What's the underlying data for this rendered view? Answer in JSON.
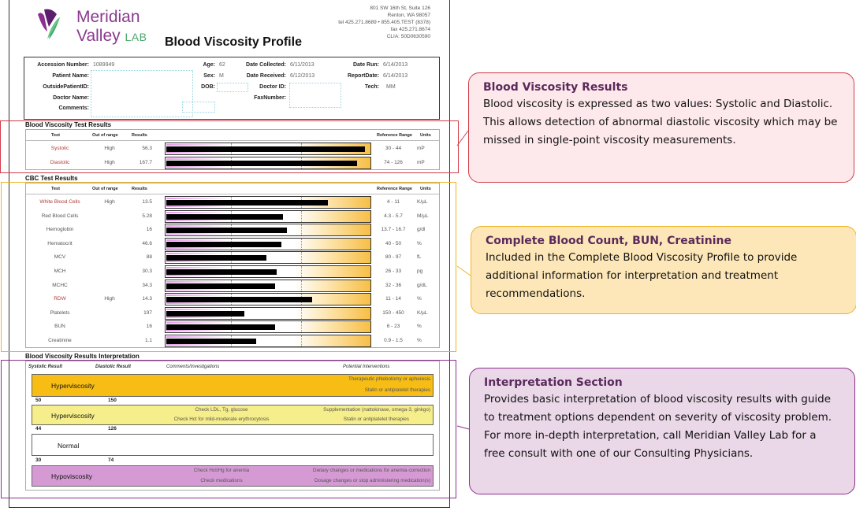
{
  "header": {
    "brand_line1": "Meridian",
    "brand_line2": "Valley",
    "brand_lab": "LAB",
    "title": "Blood Viscosity Profile",
    "address": [
      "801 SW 16th St, Suite 126",
      "Renton, WA 98057",
      "tel 425.271.8689  •  855.405.TEST (8378)",
      "fax 425.271.8674",
      "CLIA: 50D0630590"
    ],
    "logo_icon": "meridian-leaf-logo"
  },
  "patient": {
    "accession_label": "Accession Number:",
    "accession": "1089949",
    "patient_name_label": "Patient Name:",
    "patient_name": "",
    "outside_id_label": "OutsidePatientID:",
    "outside_id": "",
    "doctor_name_label": "Doctor Name:",
    "doctor_name": "",
    "comments_label": "Comments:",
    "comments": "",
    "age_label": "Age:",
    "age": "62",
    "sex_label": "Sex:",
    "sex": "M",
    "dob_label": "DOB:",
    "dob": "",
    "date_collected_label": "Date Collected:",
    "date_collected": "6/11/2013",
    "date_received_label": "Date Received:",
    "date_received": "6/12/2013",
    "doctor_id_label": "Doctor ID:",
    "doctor_id": "",
    "fax_label": "FaxNumber:",
    "fax": "",
    "date_run_label": "Date Run:",
    "date_run": "6/14/2013",
    "report_date_label": "ReportDate:",
    "report_date": "6/14/2013",
    "tech_label": "Tech:",
    "tech": "MM"
  },
  "columns": {
    "test": "Test",
    "out_of_range": "Out of range",
    "results": "Results",
    "reference_range": "Reference Range",
    "units": "Units"
  },
  "viscosity": {
    "title": "Blood Viscosity Test Results",
    "rows": [
      {
        "test": "Systolic",
        "flag": "High",
        "result": "56.3",
        "ref": "30 - 44",
        "unit": "mP",
        "bar_pct": 97,
        "high": true
      },
      {
        "test": "Diastolic",
        "flag": "High",
        "result": "167.7",
        "ref": "74 - 126",
        "unit": "mP",
        "bar_pct": 93,
        "high": true
      }
    ]
  },
  "cbc": {
    "title": "CBC Test Results",
    "rows": [
      {
        "test": "White Blood Cells",
        "flag": "High",
        "result": "13.5",
        "ref": "4 - 11",
        "unit": "K/µL",
        "bar_pct": 79,
        "high": true
      },
      {
        "test": "Red Blood Cells",
        "flag": "",
        "result": "5.28",
        "ref": "4.3 - 5.7",
        "unit": "M/µL",
        "bar_pct": 57,
        "high": false
      },
      {
        "test": "Hemoglobin",
        "flag": "",
        "result": "16",
        "ref": "13.7 - 16.7",
        "unit": "g/dl",
        "bar_pct": 59,
        "high": false
      },
      {
        "test": "Hematocrit",
        "flag": "",
        "result": "46.6",
        "ref": "40 - 50",
        "unit": "%",
        "bar_pct": 56,
        "high": false
      },
      {
        "test": "MCV",
        "flag": "",
        "result": "88",
        "ref": "80 - 97",
        "unit": "fL",
        "bar_pct": 49,
        "high": false
      },
      {
        "test": "MCH",
        "flag": "",
        "result": "30.3",
        "ref": "26 - 33",
        "unit": "pg",
        "bar_pct": 54,
        "high": false
      },
      {
        "test": "MCHC",
        "flag": "",
        "result": "34.3",
        "ref": "32 - 36",
        "unit": "g/dL",
        "bar_pct": 53,
        "high": false
      },
      {
        "test": "RDW",
        "flag": "High",
        "result": "14.3",
        "ref": "11 - 14",
        "unit": "%",
        "bar_pct": 71,
        "high": true
      },
      {
        "test": "Platelets",
        "flag": "",
        "result": "197",
        "ref": "150 - 450",
        "unit": "K/µL",
        "bar_pct": 38,
        "high": false
      },
      {
        "test": "BUN",
        "flag": "",
        "result": "16",
        "ref": "6 - 23",
        "unit": "%",
        "bar_pct": 53,
        "high": false
      },
      {
        "test": "Creatinine",
        "flag": "",
        "result": "1.1",
        "ref": "0.9 - 1.5",
        "unit": "%",
        "bar_pct": 44,
        "high": false
      }
    ]
  },
  "interpretation": {
    "title": "Blood Viscosity Results Interpretation",
    "headers": {
      "systolic": "Systolic Result",
      "diastolic": "Diastolic Result",
      "comments": "Comments/Investigations",
      "interventions": "Potential Interventions"
    },
    "bands": [
      {
        "name": "Hyperviscosity",
        "color": "#f7bd14",
        "comments": [
          "",
          ""
        ],
        "interventions": [
          "Therapeutic phlebotomy or apheresis",
          "Statin or antiplatelet therapies"
        ]
      },
      {
        "name": "Hyperviscosity",
        "color": "#f6ee8a",
        "comments": [
          "Check LDL, Tg, glucose",
          "Check Hct for mild-moderate erythrocytosis"
        ],
        "interventions": [
          "Supplementation (nattokinase, omega-3, ginkgo)",
          "Statin or antiplatelet therapies"
        ]
      },
      {
        "name": "Normal",
        "color": "#ffffff",
        "comments": [
          "",
          ""
        ],
        "interventions": [
          "",
          ""
        ]
      },
      {
        "name": "Hypoviscosity",
        "color": "#d59ad4",
        "comments": [
          "Check Hct/Hg for anemia",
          "Check medications"
        ],
        "interventions": [
          "Dietary changes or medications for anemia correction",
          "Dosage changes or stop administering medication(s)"
        ]
      }
    ],
    "thresholds": [
      {
        "systolic": "50",
        "diastolic": "150"
      },
      {
        "systolic": "44",
        "diastolic": "126"
      },
      {
        "systolic": "30",
        "diastolic": "74"
      }
    ]
  },
  "callouts": [
    {
      "title": "Blood Viscosity Results",
      "text": "Blood viscosity is expressed as two values: Systolic and Diastolic. This allows detection of abnormal diastolic viscosity which may be missed in single-point viscosity measurements.",
      "color": "#d23b4a"
    },
    {
      "title": "Complete Blood Count, BUN, Creatinine",
      "text": "Included in the Complete Blood Viscosity Profile to provide additional information for interpretation and treatment recommendations.",
      "color": "#f0b323"
    },
    {
      "title": "Interpretation Section",
      "text": "Provides basic interpretation of blood viscosity results with guide to treatment options dependent on severity of viscosity problem.  For more in-depth interpretation, call Meridian Valley Lab for a free consult with one of our Consulting Physicians.",
      "color": "#8c2f8d"
    }
  ]
}
